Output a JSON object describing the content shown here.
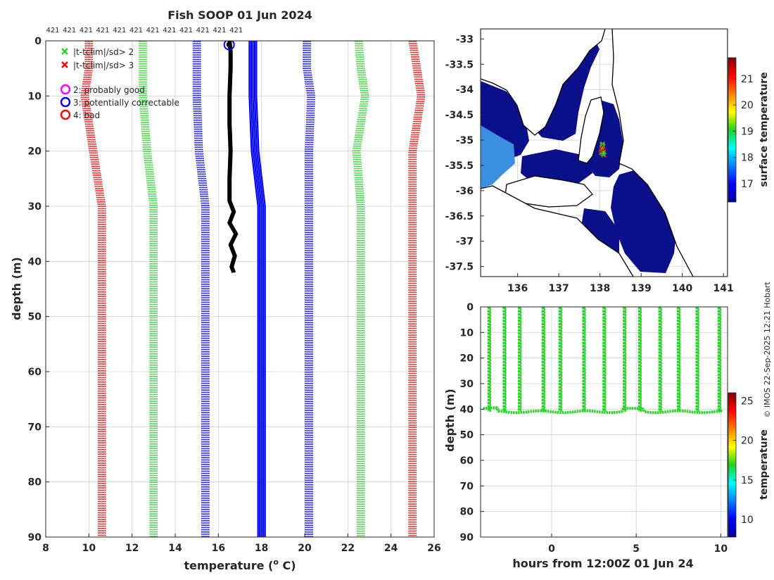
{
  "page": {
    "title": "Fish SOOP 01 Jun 2024",
    "copyright": "© IMOS 22-Sep-2025 12:21 Hobart"
  },
  "colors": {
    "black": "#000000",
    "blue": "#0000ff",
    "green": "#28d32a",
    "red": "#ff0000",
    "magenta": "#ff00ff",
    "darkred": "#cc0000",
    "grid": "#d0d0d0",
    "land": "#ffffff",
    "coast": "#000000",
    "ocean_cold": "#0a0f8a"
  },
  "chart_data": [
    {
      "id": "profile",
      "type": "line",
      "title": "Fish SOOP 01 Jun 2024",
      "xlabel": "temperature (o C)",
      "xlabel_parts": [
        "temperature (",
        "o",
        " C)"
      ],
      "ylabel": "depth (m)",
      "xlim": [
        8,
        26
      ],
      "ylim": [
        90,
        0
      ],
      "xticks": [
        8,
        10,
        12,
        14,
        16,
        18,
        20,
        22,
        24,
        26
      ],
      "yticks": [
        0,
        10,
        20,
        30,
        40,
        50,
        60,
        70,
        80,
        90
      ],
      "top_labels": [
        "421",
        "421",
        "421",
        "421",
        "421",
        "421",
        "421",
        "421",
        "421",
        "421",
        "421",
        "421"
      ],
      "legend": [
        {
          "marker": "x",
          "color": "green",
          "label": "|t-tclim|/sd> 2"
        },
        {
          "marker": "x",
          "color": "red",
          "label": "|t-tclim|/sd> 3"
        },
        {
          "marker": "o",
          "color": "magenta",
          "label": "2: probably good"
        },
        {
          "marker": "o",
          "color": "blue",
          "label": "3: potentially correctable"
        },
        {
          "marker": "o",
          "color": "red",
          "label": "4: bad"
        }
      ],
      "climatology": {
        "mean": {
          "depth": [
            0,
            5,
            10,
            20,
            30,
            90
          ],
          "temp": [
            17.6,
            17.6,
            17.6,
            17.7,
            18.0,
            18.0
          ]
        },
        "envelopes": [
          {
            "name": "-3sd",
            "color": "red",
            "depth": [
              0,
              5,
              10,
              20,
              30,
              90
            ],
            "temp": [
              10.0,
              10.0,
              9.8,
              10.2,
              10.6,
              10.6
            ]
          },
          {
            "name": "-2sd",
            "color": "green",
            "depth": [
              0,
              5,
              10,
              20,
              30,
              90
            ],
            "temp": [
              12.5,
              12.5,
              12.5,
              12.7,
              13.0,
              13.0
            ]
          },
          {
            "name": "-1sd",
            "color": "blue",
            "depth": [
              0,
              5,
              10,
              20,
              30,
              90
            ],
            "temp": [
              15.0,
              15.0,
              15.0,
              15.1,
              15.4,
              15.4
            ]
          },
          {
            "name": "+1sd",
            "color": "blue",
            "depth": [
              0,
              5,
              10,
              20,
              30,
              90
            ],
            "temp": [
              20.1,
              20.1,
              20.3,
              20.2,
              20.2,
              20.2
            ]
          },
          {
            "name": "+2sd",
            "color": "green",
            "depth": [
              0,
              5,
              10,
              20,
              30,
              90
            ],
            "temp": [
              22.5,
              22.6,
              22.8,
              22.4,
              22.6,
              22.6
            ]
          },
          {
            "name": "+3sd",
            "color": "red",
            "depth": [
              0,
              5,
              10,
              20,
              30,
              90
            ],
            "temp": [
              25.0,
              25.2,
              25.4,
              25.0,
              25.0,
              25.0
            ]
          }
        ]
      },
      "profile": {
        "color": "black",
        "depth": [
          0,
          2,
          5,
          10,
          15,
          20,
          25,
          29,
          31,
          33,
          35,
          37,
          39,
          41,
          42
        ],
        "temp": [
          16.5,
          16.55,
          16.55,
          16.5,
          16.5,
          16.55,
          16.5,
          16.5,
          16.7,
          16.5,
          16.8,
          16.55,
          16.75,
          16.6,
          16.7
        ]
      },
      "flagged_points": [
        {
          "temp": 16.5,
          "depth": 0.7,
          "flag": "3: potentially correctable"
        }
      ]
    },
    {
      "id": "map",
      "type": "heatmap",
      "colorbar_label": "surface temperature",
      "xlim": [
        135.1,
        141.1
      ],
      "ylim": [
        -37.7,
        -32.8
      ],
      "xticks": [
        136,
        137,
        138,
        139,
        140,
        141
      ],
      "yticks": [
        -33,
        -33.5,
        -34,
        -34.5,
        -35,
        -35.5,
        -36,
        -36.5,
        -37,
        -37.5
      ],
      "ytick_labels": [
        "-33",
        "-33.5",
        "-34",
        "-34.5",
        "-35",
        "-35.5",
        "-36",
        "-36.5",
        "-37",
        "-37.5"
      ],
      "clim": [
        16.3,
        21.8
      ],
      "cticks": [
        17,
        18,
        19,
        20,
        21
      ],
      "track": {
        "lon": [
          138.06,
          138.05,
          138.08,
          138.04,
          138.07,
          138.1,
          138.05,
          138.08,
          138.03,
          138.06,
          138.09
        ],
        "lat": [
          -35.1,
          -35.15,
          -35.2,
          -35.25,
          -35.12,
          -35.3,
          -35.18,
          -35.28,
          -35.22,
          -35.08,
          -35.24
        ]
      }
    },
    {
      "id": "timeseries",
      "type": "scatter",
      "xlabel": "hours from 12:00Z 01 Jun 24",
      "ylabel": "depth (m)",
      "colorbar_label": "temperature",
      "xlim": [
        -4.2,
        10.4
      ],
      "ylim": [
        90,
        0
      ],
      "xticks": [
        0,
        5,
        10
      ],
      "yticks": [
        0,
        10,
        20,
        30,
        40,
        50,
        60,
        70,
        80,
        90
      ],
      "clim": [
        7.8,
        26
      ],
      "cticks": [
        10,
        15,
        20,
        25
      ],
      "cast_hours": [
        -3.7,
        -2.8,
        -1.9,
        -0.5,
        0.5,
        1.9,
        3.1,
        4.3,
        5.2,
        6.4,
        7.5,
        8.6,
        9.9
      ],
      "bottom_depth": 41,
      "point_temp": 16.5
    }
  ]
}
